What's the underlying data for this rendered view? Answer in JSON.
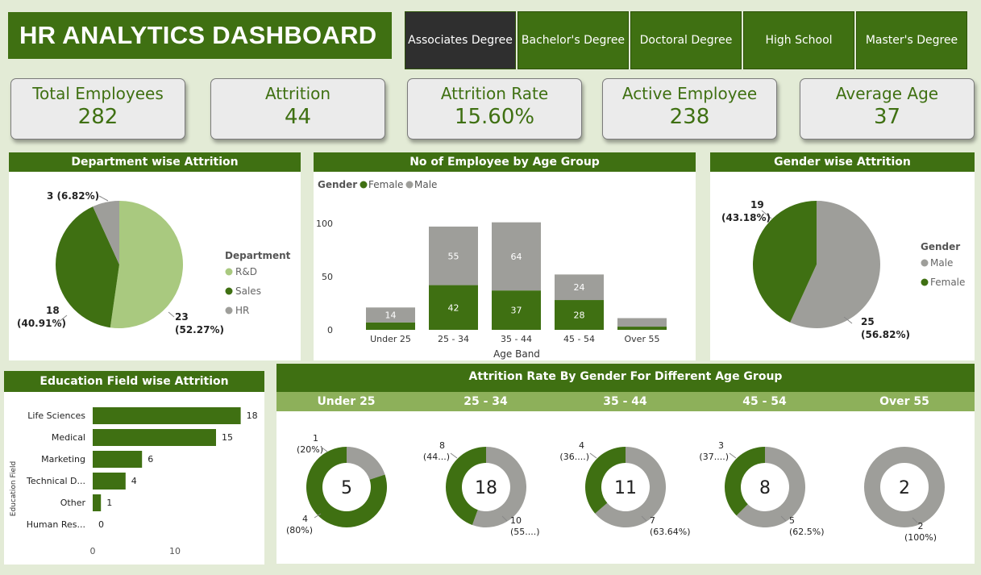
{
  "header": {
    "title": "HR ANALYTICS DASHBOARD"
  },
  "colors": {
    "dark_green": "#3f7012",
    "light_green": "#a9c97f",
    "mid_green": "#8db05a",
    "grey": "#9e9e9a",
    "bg": "#e3ebd6"
  },
  "education_slicer": [
    {
      "label": "Associates Degree",
      "selected": true
    },
    {
      "label": "Bachelor's Degree",
      "selected": false
    },
    {
      "label": "Doctoral Degree",
      "selected": false
    },
    {
      "label": "High School",
      "selected": false
    },
    {
      "label": "Master's Degree",
      "selected": false
    }
  ],
  "kpis": [
    {
      "label": "Total Employees",
      "value": "282"
    },
    {
      "label": "Attrition",
      "value": "44"
    },
    {
      "label": "Attrition Rate",
      "value": "15.60%"
    },
    {
      "label": "Active Employee",
      "value": "238"
    },
    {
      "label": "Average Age",
      "value": "37"
    }
  ],
  "dept_chart": {
    "title": "Department wise Attrition",
    "legend_title": "Department",
    "slices": [
      {
        "name": "R&D",
        "value": 23,
        "label": "23",
        "pct": "(52.27%)",
        "color": "#a9c97f"
      },
      {
        "name": "Sales",
        "value": 18,
        "label": "18",
        "pct": "(40.91%)",
        "color": "#3f7012"
      },
      {
        "name": "HR",
        "value": 3,
        "label": "3 (6.82%)",
        "pct": "",
        "color": "#9e9e9a"
      }
    ]
  },
  "age_chart": {
    "title": "No of Employee by Age Group",
    "legend_title": "Gender",
    "legend": [
      "Female",
      "Male"
    ],
    "xlabel": "Age Band",
    "y_ticks": [
      "100",
      "50",
      "0"
    ],
    "ylim": [
      0,
      100
    ],
    "categories": [
      "Under 25",
      "25 - 34",
      "35 - 44",
      "45 - 54",
      "Over 55"
    ],
    "female": [
      7,
      42,
      37,
      28,
      3
    ],
    "male": [
      14,
      55,
      64,
      24,
      8
    ],
    "female_labels": [
      "",
      "42",
      "37",
      "28",
      ""
    ],
    "male_labels": [
      "14",
      "55",
      "64",
      "24",
      ""
    ]
  },
  "gender_chart": {
    "title": "Gender wise Attrition",
    "legend_title": "Gender",
    "legend": [
      "Male",
      "Female"
    ],
    "slices": [
      {
        "name": "Male",
        "value": 25,
        "label": "25",
        "pct": "(56.82%)",
        "color": "#9e9e9a"
      },
      {
        "name": "Female",
        "value": 19,
        "label": "19",
        "pct": "(43.18%)",
        "color": "#3f7012"
      }
    ]
  },
  "edu_chart": {
    "title": "Education Field wise Attrition",
    "ylabel": "Education Field",
    "categories": [
      "Life Sciences",
      "Medical",
      "Marketing",
      "Technical D...",
      "Other",
      "Human Res..."
    ],
    "values": [
      18,
      15,
      6,
      4,
      1,
      0
    ],
    "x_ticks": [
      "0",
      "10"
    ]
  },
  "donut_section": {
    "title": "Attrition Rate By Gender For Different Age Group",
    "groups": [
      {
        "band": "Under 25",
        "total": "5",
        "green": 4,
        "grey": 1,
        "grey_label": "1",
        "grey_pct": "(20%)",
        "green_label": "4",
        "green_pct": "(80%)"
      },
      {
        "band": "25 - 34",
        "total": "18",
        "green": 8,
        "grey": 10,
        "green_label": "8",
        "green_pct": "(44...)",
        "grey_label": "10",
        "grey_pct": "(55....)"
      },
      {
        "band": "35 - 44",
        "total": "11",
        "green": 4,
        "grey": 7,
        "green_label": "4",
        "green_pct": "(36....)",
        "grey_label": "7",
        "grey_pct": "(63.64%)"
      },
      {
        "band": "45 - 54",
        "total": "8",
        "green": 3,
        "grey": 5,
        "green_label": "3",
        "green_pct": "(37....)",
        "grey_label": "5",
        "grey_pct": "(62.5%)"
      },
      {
        "band": "Over 55",
        "total": "2",
        "green": 0,
        "grey": 2,
        "grey_label": "2",
        "grey_pct": "(100%)"
      }
    ]
  }
}
